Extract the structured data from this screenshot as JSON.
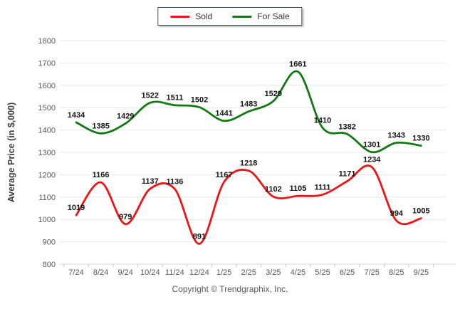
{
  "legend": {
    "items": [
      {
        "label": "Sold",
        "color": "#ed1515"
      },
      {
        "label": "For Sale",
        "color": "#127a12"
      }
    ]
  },
  "chart_data": {
    "type": "line",
    "title": "",
    "xlabel": "",
    "ylabel": "Average Price (in $,000)",
    "categories": [
      "7/24",
      "8/24",
      "9/24",
      "10/24",
      "11/24",
      "12/24",
      "1/25",
      "2/25",
      "3/25",
      "4/25",
      "5/25",
      "6/25",
      "7/25",
      "8/25",
      "9/25"
    ],
    "series": [
      {
        "name": "Sold",
        "color": "#ed1515",
        "values": [
          1019,
          1166,
          979,
          1137,
          1136,
          891,
          1167,
          1218,
          1102,
          1105,
          1111,
          1171,
          1234,
          994,
          1005
        ]
      },
      {
        "name": "For Sale",
        "color": "#127a12",
        "values": [
          1434,
          1385,
          1429,
          1522,
          1511,
          1502,
          1441,
          1483,
          1529,
          1661,
          1410,
          1382,
          1301,
          1343,
          1330
        ]
      }
    ],
    "ylim": [
      800,
      1800
    ],
    "yticks": [
      800,
      900,
      1000,
      1100,
      1200,
      1300,
      1400,
      1500,
      1600,
      1700,
      1800
    ],
    "grid": true,
    "data_labels": true,
    "legend_position": "top",
    "line_smooth": true
  },
  "footer": {
    "copyright": "Copyright © Trendgraphix, Inc."
  }
}
